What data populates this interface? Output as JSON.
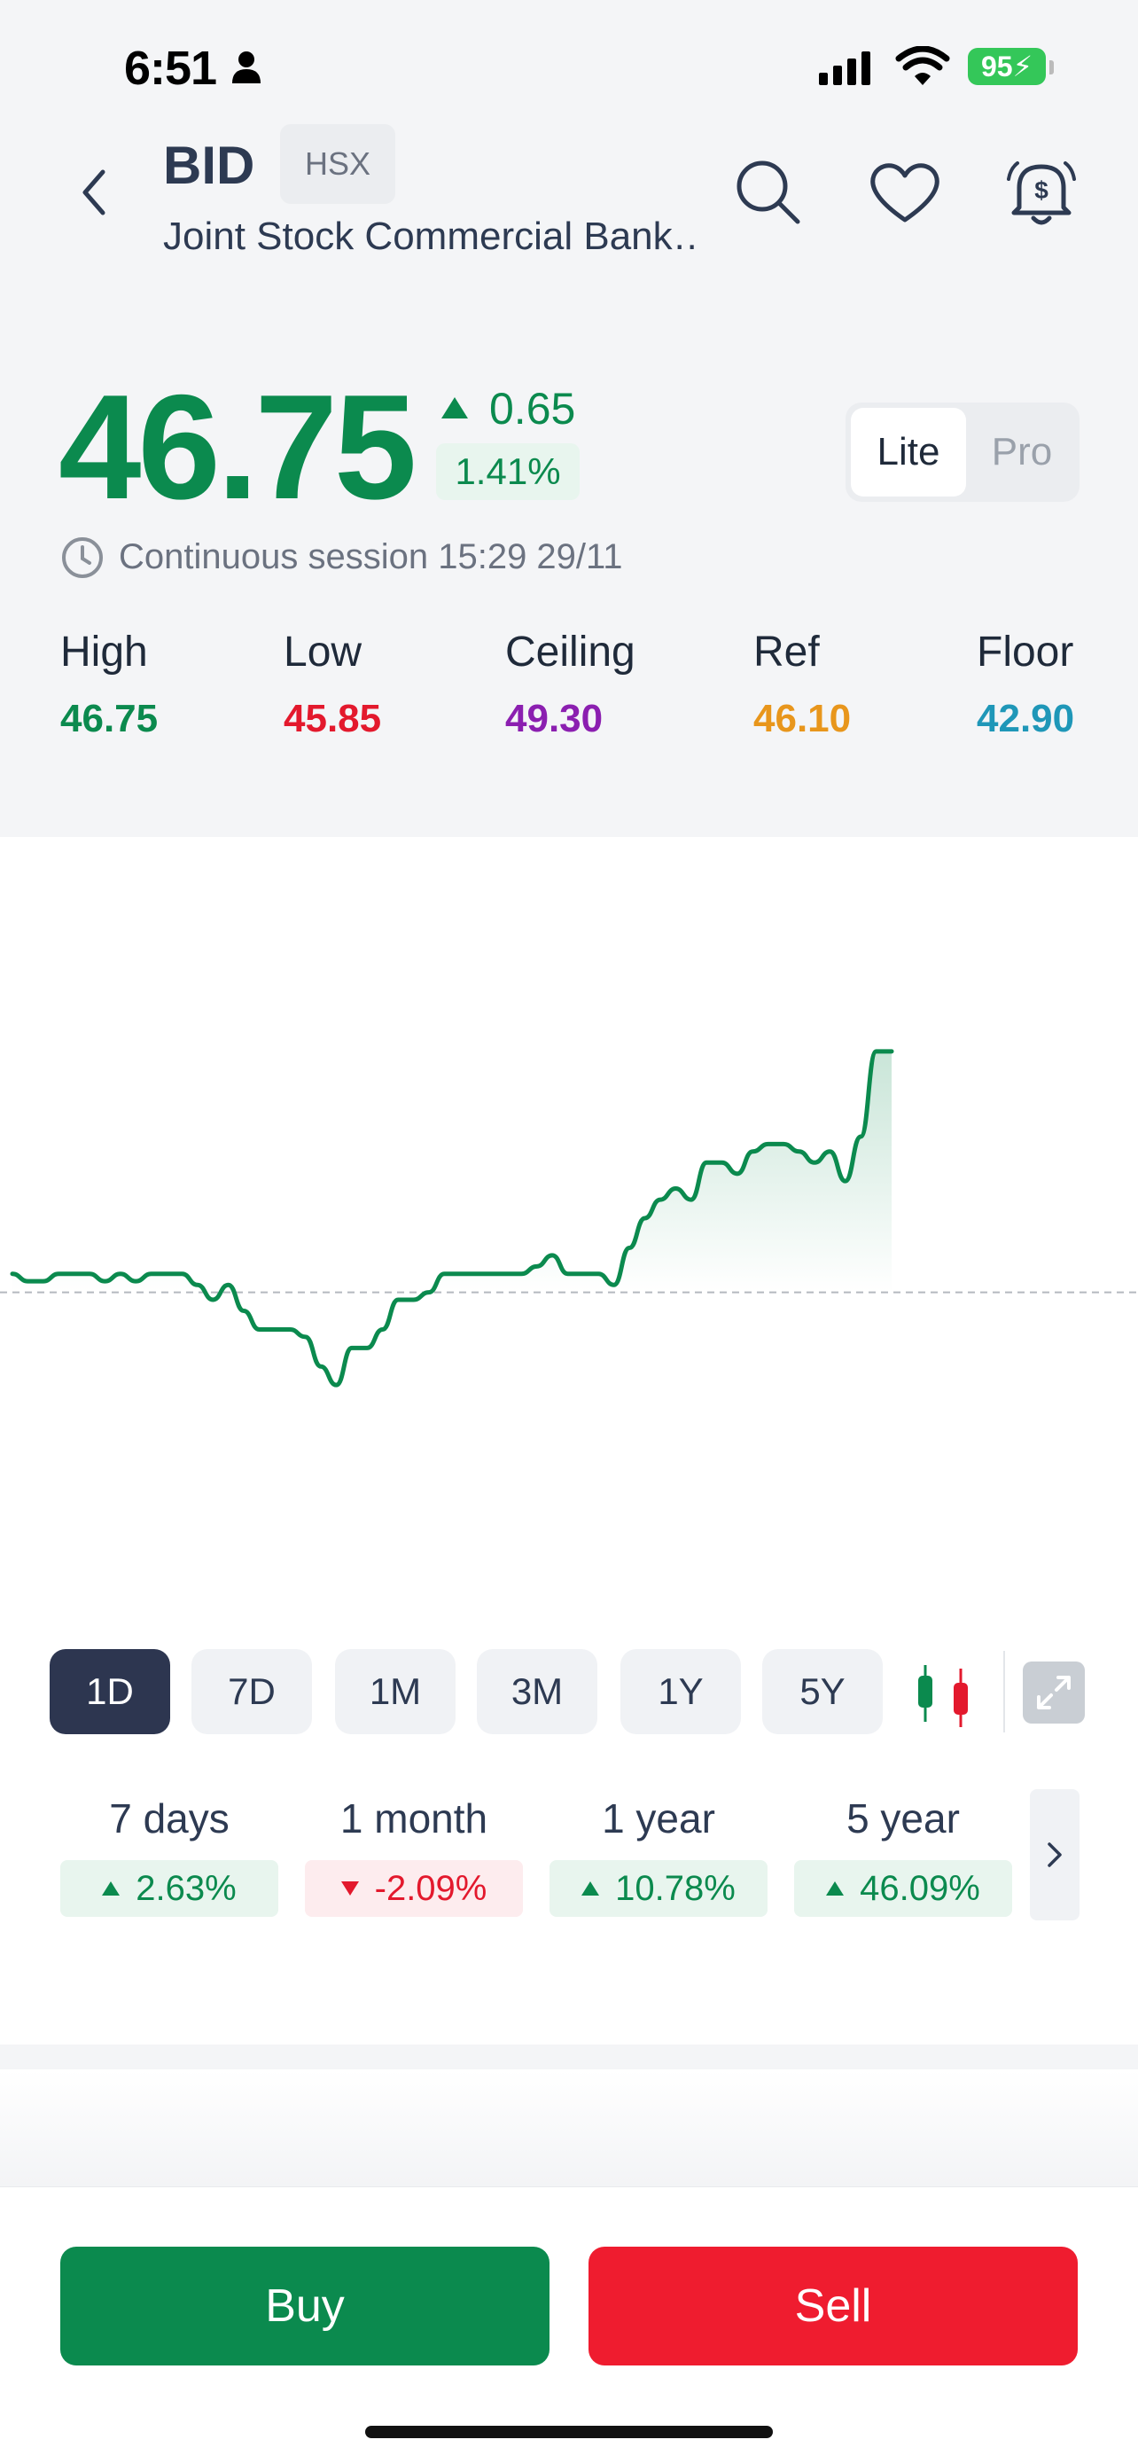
{
  "status_bar": {
    "time": "6:51",
    "battery": "95"
  },
  "header": {
    "ticker": "BID",
    "exchange": "HSX",
    "company": "Joint Stock Commercial Bank…"
  },
  "quote": {
    "price": "46.75",
    "change": "0.65",
    "change_pct": "1.41%",
    "session": "Continuous session 15:29 29/11"
  },
  "view_toggle": {
    "lite": "Lite",
    "pro": "Pro",
    "selected": "Lite"
  },
  "stats": [
    {
      "label": "High",
      "value": "46.75",
      "color": "#0b8a4e"
    },
    {
      "label": "Low",
      "value": "45.85",
      "color": "#e3192d"
    },
    {
      "label": "Ceiling",
      "value": "49.30",
      "color": "#8b1fb0"
    },
    {
      "label": "Ref",
      "value": "46.10",
      "color": "#e8961c"
    },
    {
      "label": "Floor",
      "value": "42.90",
      "color": "#1f97b8"
    }
  ],
  "chart_data": {
    "type": "line",
    "reference": 46.1,
    "ylim": [
      45.75,
      46.85
    ],
    "values": [
      46.15,
      46.13,
      46.13,
      46.15,
      46.15,
      46.15,
      46.13,
      46.15,
      46.13,
      46.15,
      46.15,
      46.15,
      46.12,
      46.08,
      46.12,
      46.05,
      46.0,
      46.0,
      46.0,
      45.98,
      45.9,
      45.85,
      45.95,
      45.95,
      46.0,
      46.08,
      46.08,
      46.1,
      46.15,
      46.15,
      46.15,
      46.15,
      46.15,
      46.15,
      46.17,
      46.2,
      46.15,
      46.15,
      46.15,
      46.12,
      46.22,
      46.3,
      46.35,
      46.38,
      46.35,
      46.45,
      46.45,
      46.42,
      46.48,
      46.5,
      46.5,
      46.48,
      46.45,
      46.48,
      46.4,
      46.52,
      46.75,
      46.75
    ],
    "colors": {
      "line": "#0b8a4e",
      "reference": "#b5b9bf"
    }
  },
  "ranges": {
    "tabs": [
      "1D",
      "7D",
      "1M",
      "3M",
      "1Y",
      "5Y"
    ],
    "selected": "1D"
  },
  "performance": [
    {
      "label": "7 days",
      "value": "2.63%",
      "direction": "up"
    },
    {
      "label": "1 month",
      "value": "-2.09%",
      "direction": "down"
    },
    {
      "label": "1 year",
      "value": "10.78%",
      "direction": "up"
    },
    {
      "label": "5 year",
      "value": "46.09%",
      "direction": "up"
    }
  ],
  "actions": {
    "buy": "Buy",
    "sell": "Sell"
  },
  "icons": [
    "person-icon",
    "signal-icon",
    "wifi-icon",
    "back-icon",
    "search-icon",
    "heart-icon",
    "price-alert-bell-icon",
    "clock-icon",
    "candlestick-icon",
    "expand-icon",
    "chevron-right-icon"
  ]
}
